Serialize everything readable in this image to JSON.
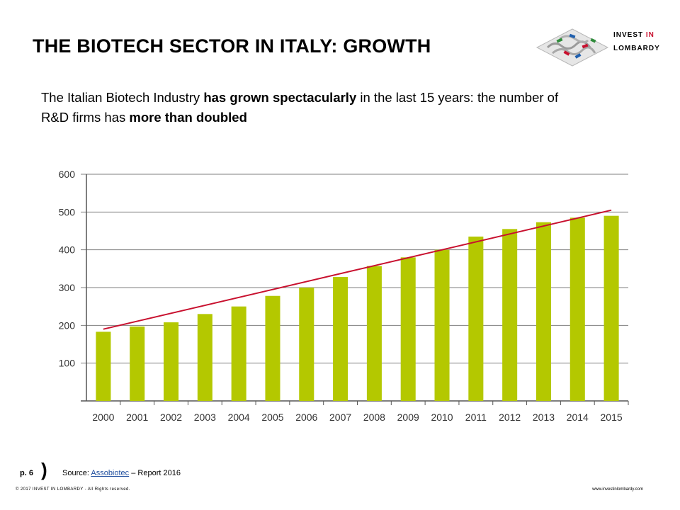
{
  "slide": {
    "title": "THE BIOTECH SECTOR IN ITALY: GROWTH",
    "intro": [
      {
        "text": "The Italian Biotech Industry ",
        "bold": false
      },
      {
        "text": "has grown spectacularly",
        "bold": true
      },
      {
        "text": " in the last 15 years: the number of R&D firms has ",
        "bold": false
      },
      {
        "text": "more than doubled",
        "bold": true
      }
    ]
  },
  "logo": {
    "line1_a": "INVEST ",
    "line1_b": "IN",
    "line2": "LOMBARDY",
    "accent_color": "#c8102e"
  },
  "footer": {
    "page": "p. 6",
    "paren": ")",
    "source_prefix": "Source: ",
    "source_link": "Assobiotec",
    "source_suffix": " – Report 2016",
    "copyright": "© 2017 INVEST IN LOMBARDY -  All Rights reserved.",
    "website": "www.investinlombardy.com"
  },
  "chart_data": {
    "type": "bar",
    "categories": [
      "2000",
      "2001",
      "2002",
      "2003",
      "2004",
      "2005",
      "2006",
      "2007",
      "2008",
      "2009",
      "2010",
      "2011",
      "2012",
      "2013",
      "2014",
      "2015"
    ],
    "series": [
      {
        "values": [
          183,
          197,
          208,
          230,
          250,
          278,
          300,
          328,
          357,
          380,
          400,
          435,
          455,
          473,
          485,
          490
        ]
      }
    ],
    "trendline": {
      "start": 190,
      "end": 505,
      "color": "#c8102e"
    },
    "ylim": [
      0,
      600
    ],
    "yticks": [
      100,
      200,
      300,
      400,
      500,
      600
    ],
    "grid": true,
    "bar_color": "#b4c800",
    "grid_color": "#7f7f7f"
  }
}
